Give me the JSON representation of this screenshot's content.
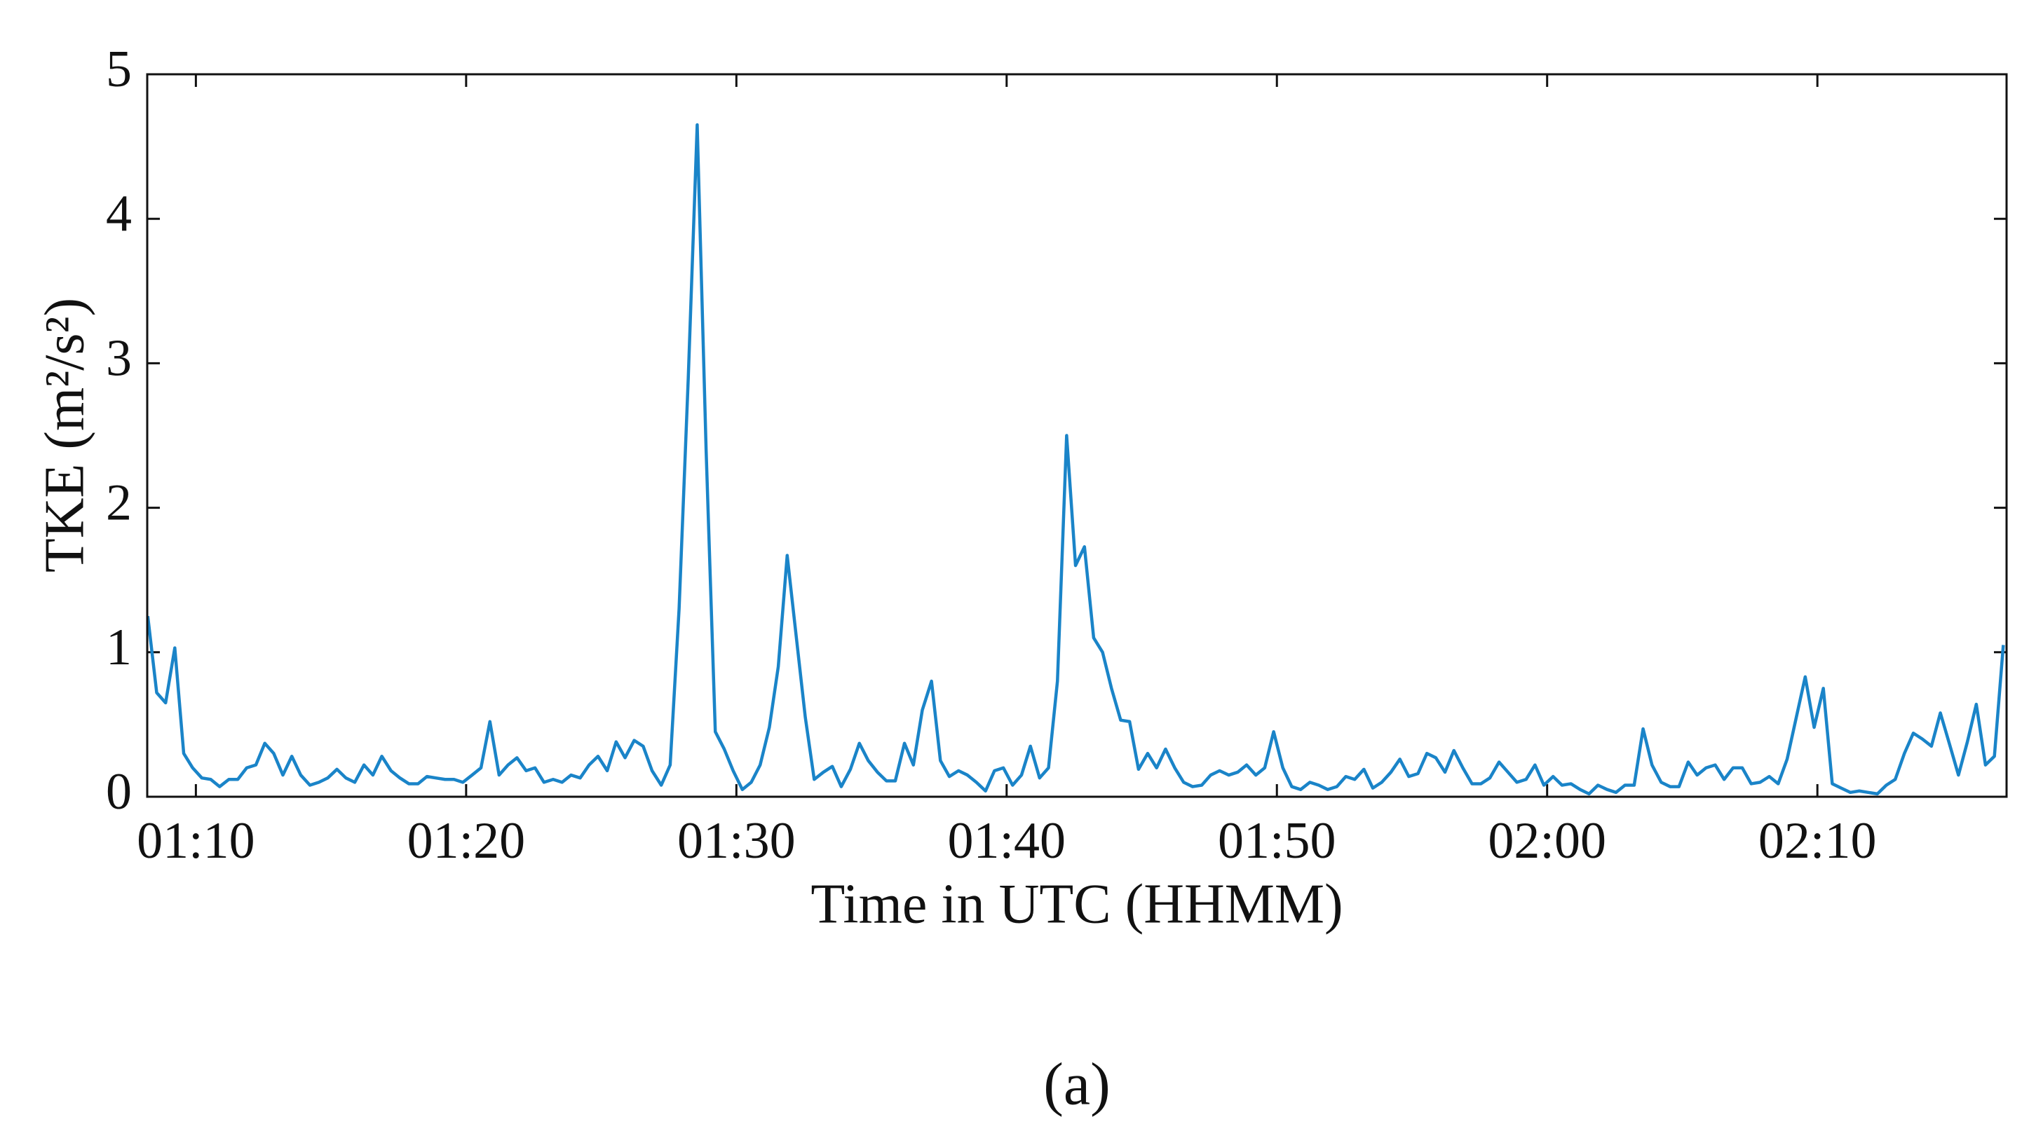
{
  "chart_data": {
    "type": "line",
    "xlabel": "Time in UTC (HHMM)",
    "ylabel": "TKE (m²/s²)",
    "caption": "(a)",
    "color": "#1a84c8",
    "xlim": [
      68.2,
      137.0
    ],
    "ylim": [
      0,
      5
    ],
    "xticks": [
      {
        "value": 70,
        "label": "01:10"
      },
      {
        "value": 80,
        "label": "01:20"
      },
      {
        "value": 90,
        "label": "01:30"
      },
      {
        "value": 100,
        "label": "01:40"
      },
      {
        "value": 110,
        "label": "01:50"
      },
      {
        "value": 120,
        "label": "02:00"
      },
      {
        "value": 130,
        "label": "02:10"
      }
    ],
    "yticks": [
      0,
      1,
      2,
      3,
      4,
      5
    ],
    "x": [
      68.22,
      68.55,
      68.88,
      69.22,
      69.55,
      69.88,
      70.22,
      70.55,
      70.88,
      71.22,
      71.55,
      71.88,
      72.22,
      72.55,
      72.88,
      73.22,
      73.55,
      73.88,
      74.22,
      74.55,
      74.88,
      75.22,
      75.55,
      75.88,
      76.22,
      76.55,
      76.88,
      77.22,
      77.55,
      77.88,
      78.22,
      78.55,
      78.88,
      79.22,
      79.55,
      79.88,
      80.22,
      80.55,
      80.88,
      81.22,
      81.55,
      81.88,
      82.22,
      82.55,
      82.88,
      83.22,
      83.55,
      83.88,
      84.22,
      84.55,
      84.88,
      85.22,
      85.55,
      85.88,
      86.22,
      86.55,
      86.88,
      87.22,
      87.55,
      87.88,
      88.22,
      88.55,
      88.88,
      89.22,
      89.55,
      89.88,
      90.22,
      90.55,
      90.88,
      91.22,
      91.55,
      91.88,
      92.22,
      92.55,
      92.88,
      93.22,
      93.55,
      93.88,
      94.22,
      94.55,
      94.88,
      95.22,
      95.55,
      95.88,
      96.22,
      96.55,
      96.88,
      97.22,
      97.55,
      97.88,
      98.22,
      98.55,
      98.88,
      99.22,
      99.55,
      99.88,
      100.22,
      100.55,
      100.88,
      101.22,
      101.55,
      101.88,
      102.22,
      102.55,
      102.88,
      103.22,
      103.55,
      103.88,
      104.22,
      104.55,
      104.88,
      105.22,
      105.55,
      105.88,
      106.22,
      106.55,
      106.88,
      107.22,
      107.55,
      107.88,
      108.22,
      108.55,
      108.88,
      109.22,
      109.55,
      109.88,
      110.22,
      110.55,
      110.88,
      111.22,
      111.55,
      111.88,
      112.22,
      112.55,
      112.88,
      113.22,
      113.55,
      113.88,
      114.22,
      114.55,
      114.88,
      115.22,
      115.55,
      115.88,
      116.22,
      116.55,
      116.88,
      117.22,
      117.55,
      117.88,
      118.22,
      118.55,
      118.88,
      119.22,
      119.55,
      119.88,
      120.22,
      120.55,
      120.88,
      121.22,
      121.55,
      121.88,
      122.22,
      122.55,
      122.88,
      123.22,
      123.55,
      123.88,
      124.22,
      124.55,
      124.88,
      125.22,
      125.55,
      125.88,
      126.22,
      126.55,
      126.88,
      127.22,
      127.55,
      127.88,
      128.22,
      128.55,
      128.88,
      129.22,
      129.55,
      129.88,
      130.22,
      130.55,
      130.88,
      131.22,
      131.55,
      131.88,
      132.22,
      132.55,
      132.88,
      133.22,
      133.55,
      133.88,
      134.22,
      134.55,
      134.88,
      135.22,
      135.55,
      135.88,
      136.22,
      136.55,
      136.88
    ],
    "values": [
      1.25,
      0.72,
      0.65,
      1.03,
      0.3,
      0.2,
      0.13,
      0.12,
      0.07,
      0.12,
      0.12,
      0.2,
      0.22,
      0.37,
      0.3,
      0.15,
      0.28,
      0.15,
      0.08,
      0.1,
      0.13,
      0.19,
      0.13,
      0.1,
      0.22,
      0.15,
      0.28,
      0.18,
      0.13,
      0.09,
      0.09,
      0.14,
      0.13,
      0.12,
      0.12,
      0.1,
      0.15,
      0.2,
      0.52,
      0.15,
      0.22,
      0.27,
      0.18,
      0.2,
      0.1,
      0.12,
      0.1,
      0.15,
      0.13,
      0.22,
      0.28,
      0.18,
      0.38,
      0.27,
      0.39,
      0.35,
      0.18,
      0.08,
      0.22,
      1.3,
      2.9,
      4.65,
      2.4,
      0.45,
      0.33,
      0.18,
      0.05,
      0.1,
      0.22,
      0.48,
      0.9,
      1.67,
      1.1,
      0.55,
      0.12,
      0.17,
      0.21,
      0.07,
      0.19,
      0.37,
      0.25,
      0.17,
      0.11,
      0.11,
      0.37,
      0.22,
      0.6,
      0.8,
      0.25,
      0.14,
      0.18,
      0.15,
      0.1,
      0.04,
      0.18,
      0.2,
      0.08,
      0.15,
      0.35,
      0.13,
      0.2,
      0.8,
      2.5,
      1.6,
      1.73,
      1.1,
      1.0,
      0.75,
      0.53,
      0.52,
      0.19,
      0.3,
      0.2,
      0.33,
      0.2,
      0.1,
      0.07,
      0.08,
      0.15,
      0.18,
      0.15,
      0.17,
      0.22,
      0.15,
      0.2,
      0.45,
      0.2,
      0.07,
      0.05,
      0.1,
      0.08,
      0.05,
      0.07,
      0.14,
      0.12,
      0.19,
      0.06,
      0.1,
      0.17,
      0.26,
      0.14,
      0.16,
      0.3,
      0.27,
      0.17,
      0.32,
      0.2,
      0.09,
      0.09,
      0.13,
      0.24,
      0.17,
      0.1,
      0.12,
      0.22,
      0.08,
      0.14,
      0.08,
      0.09,
      0.05,
      0.02,
      0.08,
      0.05,
      0.03,
      0.08,
      0.08,
      0.47,
      0.22,
      0.1,
      0.07,
      0.07,
      0.24,
      0.15,
      0.2,
      0.22,
      0.12,
      0.2,
      0.2,
      0.09,
      0.1,
      0.14,
      0.09,
      0.26,
      0.55,
      0.83,
      0.48,
      0.75,
      0.09,
      0.06,
      0.03,
      0.04,
      0.03,
      0.02,
      0.08,
      0.12,
      0.3,
      0.44,
      0.4,
      0.35,
      0.58,
      0.37,
      0.15,
      0.38,
      0.64,
      0.22,
      0.28,
      1.05
    ]
  }
}
